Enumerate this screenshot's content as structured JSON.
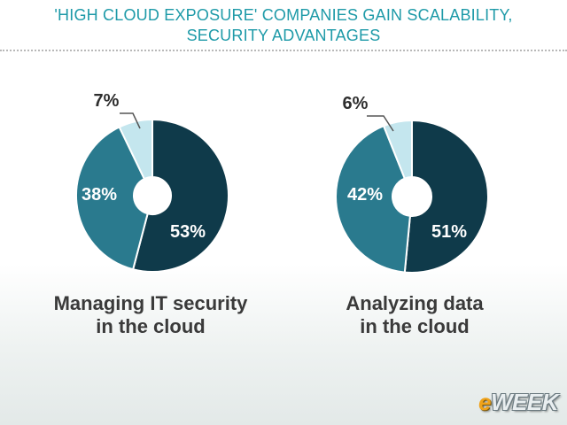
{
  "header": {
    "line1": "'HIGH CLOUD EXPOSURE' COMPANIES GAIN SCALABILITY,",
    "line2": "SECURITY ADVANTAGES"
  },
  "colors": {
    "header": "#1e9aa8",
    "dark": "#0f3a4a",
    "mid": "#2a7a8e",
    "light": "#c4e6ee",
    "caption": "#3a3a3a"
  },
  "chart_data": [
    {
      "type": "pie",
      "categories": [
        "53%",
        "38%",
        "7%"
      ],
      "values": [
        53,
        38,
        7
      ],
      "labels": [
        "53%",
        "38%",
        "7%"
      ],
      "caption_line1": "Managing IT security",
      "caption_line2": "in the cloud"
    },
    {
      "type": "pie",
      "categories": [
        "51%",
        "42%",
        "6%"
      ],
      "values": [
        51,
        42,
        6
      ],
      "labels": [
        "51%",
        "42%",
        "6%"
      ],
      "caption_line1": "Analyzing data",
      "caption_line2": "in the cloud"
    }
  ],
  "logo": {
    "e": "e",
    "rest": "WEEK"
  }
}
